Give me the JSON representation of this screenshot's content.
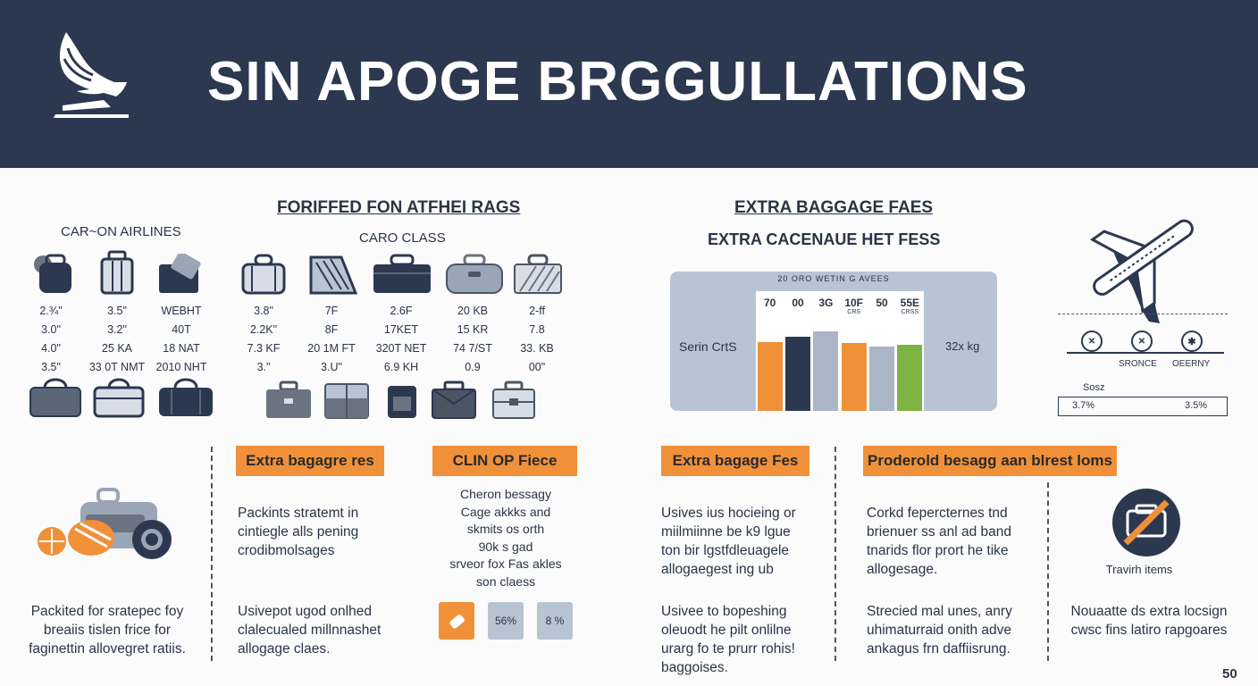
{
  "header": {
    "title": "SIN APOGE  BRGGULLATIONS"
  },
  "left_section": {
    "title": "FORIFFED FON ATFHEI RAGS",
    "carry_on_label": "CAR~ON AIRLINES",
    "cargo_label": "CARO CLASS",
    "stats_columns": [
      [
        "2.¾\"",
        "3.0\"",
        "4.0\"",
        "3.5\""
      ],
      [
        "3.5\"",
        "3.2\"",
        "25 KA",
        "33 0T NMT"
      ],
      [
        "WEBHT",
        "40T",
        "18 NAT",
        "2010 NHT"
      ],
      [
        "3.8\"",
        "2.2K\"",
        "7.3 KF",
        "3.\""
      ],
      [
        "7F",
        "8F",
        "20 1M FT",
        "3.U\""
      ],
      [
        "2.6F",
        "17KET",
        "320T NET",
        "6.9 KH"
      ],
      [
        "20 KB",
        "15 KR",
        "74 7/ST",
        "0.9"
      ],
      [
        "2-ff",
        "7.8",
        "33. KB",
        "00\""
      ]
    ]
  },
  "right_section": {
    "title": "EXTRA BAGGAGE FAES",
    "subtitle": "EXTRA CACENAUE HET FESS",
    "chart_header": "20 ORO WETIN G AVEES",
    "left_label": "Serin CrtS",
    "right_label": "32x kg",
    "plane_labels": [
      "SRONCE",
      "OEERNY"
    ],
    "table_label": "Sosz",
    "table_values": [
      "3.7%",
      "3.5%"
    ]
  },
  "chart_data": {
    "type": "bar",
    "categories": [
      "70",
      "00",
      "3G",
      "10F",
      "50",
      "55E"
    ],
    "values": [
      70,
      75,
      81,
      69,
      65,
      67
    ],
    "title": "20 ORO WETIN G AVEES",
    "xlabel": "",
    "ylabel": "",
    "ylim": [
      0,
      100
    ],
    "colors": [
      "#f0913a",
      "#2c3850",
      "#aab6c5",
      "#f0913a",
      "#aab6c5",
      "#7cb342"
    ],
    "sublabels": [
      "",
      "",
      "",
      "CRS",
      "",
      "CRSS"
    ],
    "grid": false
  },
  "bottom": {
    "boxes": [
      "Extra bagagre res",
      "CLIN OP Fiece",
      "Extra bagage Fes",
      "Proderold besagg aan blrest loms"
    ],
    "col1_text": "Packited for sratepec foy\nbreaiis tislen frice for\nfaginettin allovegret ratiis.",
    "col2_top": "Packints stratemt in\ncintiegle alls pening\ncrodibmolsages",
    "col2_bottom": "Usivepot ugod onlhed\nclalecualed millnnashet\nallogage claes.",
    "col3_text": "Cheron bessagy\nCage akkks and\nskmits os orth\n90k s gad\nsrveor fox Fas akles\nson claess",
    "chips": [
      "56%",
      "8 %"
    ],
    "col4_top": "Usives ius hocieing or\nmiilmiinne be k9 lgue\nton bir lgstfdleuagele\nallogaegest ing ub",
    "col4_bottom": "Usivee to bopeshing\noleuodt he pilt onlilne\nurarg fo te prurr rohis!\nbaggoises.",
    "col5_top": "Corkd fepercternes tnd\nbrienuer ss anl ad band\ntnarids flor prort he tike\nallogesage.",
    "col5_bottom": "Strecied mal unes, anry\nuhimaturraid onith adve\nankagus frn daffiisrung.",
    "col6_label": "Travirh items",
    "col6_bottom": "Nouaatte ds extra locsign\ncwsc fins latiro rapgoares"
  },
  "page_number": "50",
  "colors": {
    "navy": "#2c3850",
    "orange": "#f0913a",
    "slate": "#b9c4d3",
    "green": "#7cb342"
  }
}
